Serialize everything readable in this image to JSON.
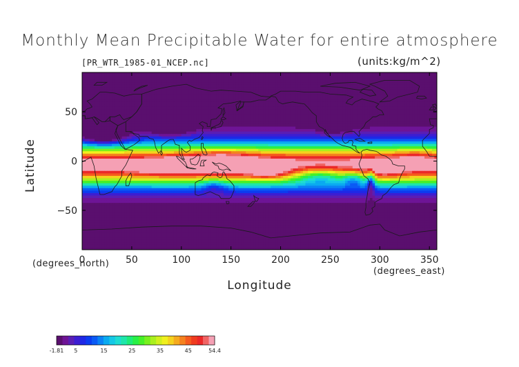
{
  "chart_data": {
    "type": "heatmap",
    "title": "Monthly Mean Precipitable Water for entire atmosphere",
    "file_label": "[PR_WTR_1985-01_NCEP.nc]",
    "units_label": "(units:kg/m^2)",
    "xlabel": "Longitude",
    "xunits": "(degrees_east)",
    "ylabel": "Latitude",
    "yunits": "(degrees_north)",
    "xlim": [
      0,
      357.5
    ],
    "ylim": [
      -90,
      90
    ],
    "xticks": [
      0,
      50,
      100,
      150,
      200,
      250,
      300,
      350
    ],
    "yticks": [
      50,
      0,
      -50
    ],
    "colorbar": {
      "min": -1.81,
      "max": 54.4,
      "tick_labels": [
        "-1.81",
        "5",
        "15",
        "25",
        "35",
        "45",
        "54.4"
      ],
      "tick_values": [
        -1.81,
        5,
        15,
        25,
        35,
        45,
        54.4
      ],
      "colors": [
        "#5a0f6e",
        "#6e1496",
        "#5a1eb4",
        "#3c1ed2",
        "#1e28e6",
        "#0a3cf0",
        "#0a5af5",
        "#0a82f5",
        "#0aaaf0",
        "#14c8e6",
        "#1edcd2",
        "#1ee6aa",
        "#1eeb78",
        "#28f046",
        "#46f028",
        "#78f01e",
        "#aaf01e",
        "#d2f01e",
        "#f0f01e",
        "#f5d21e",
        "#f5aa1e",
        "#f5821e",
        "#f55a1e",
        "#f03c1e",
        "#eb2828",
        "#f06464",
        "#f5a0b4"
      ]
    }
  }
}
